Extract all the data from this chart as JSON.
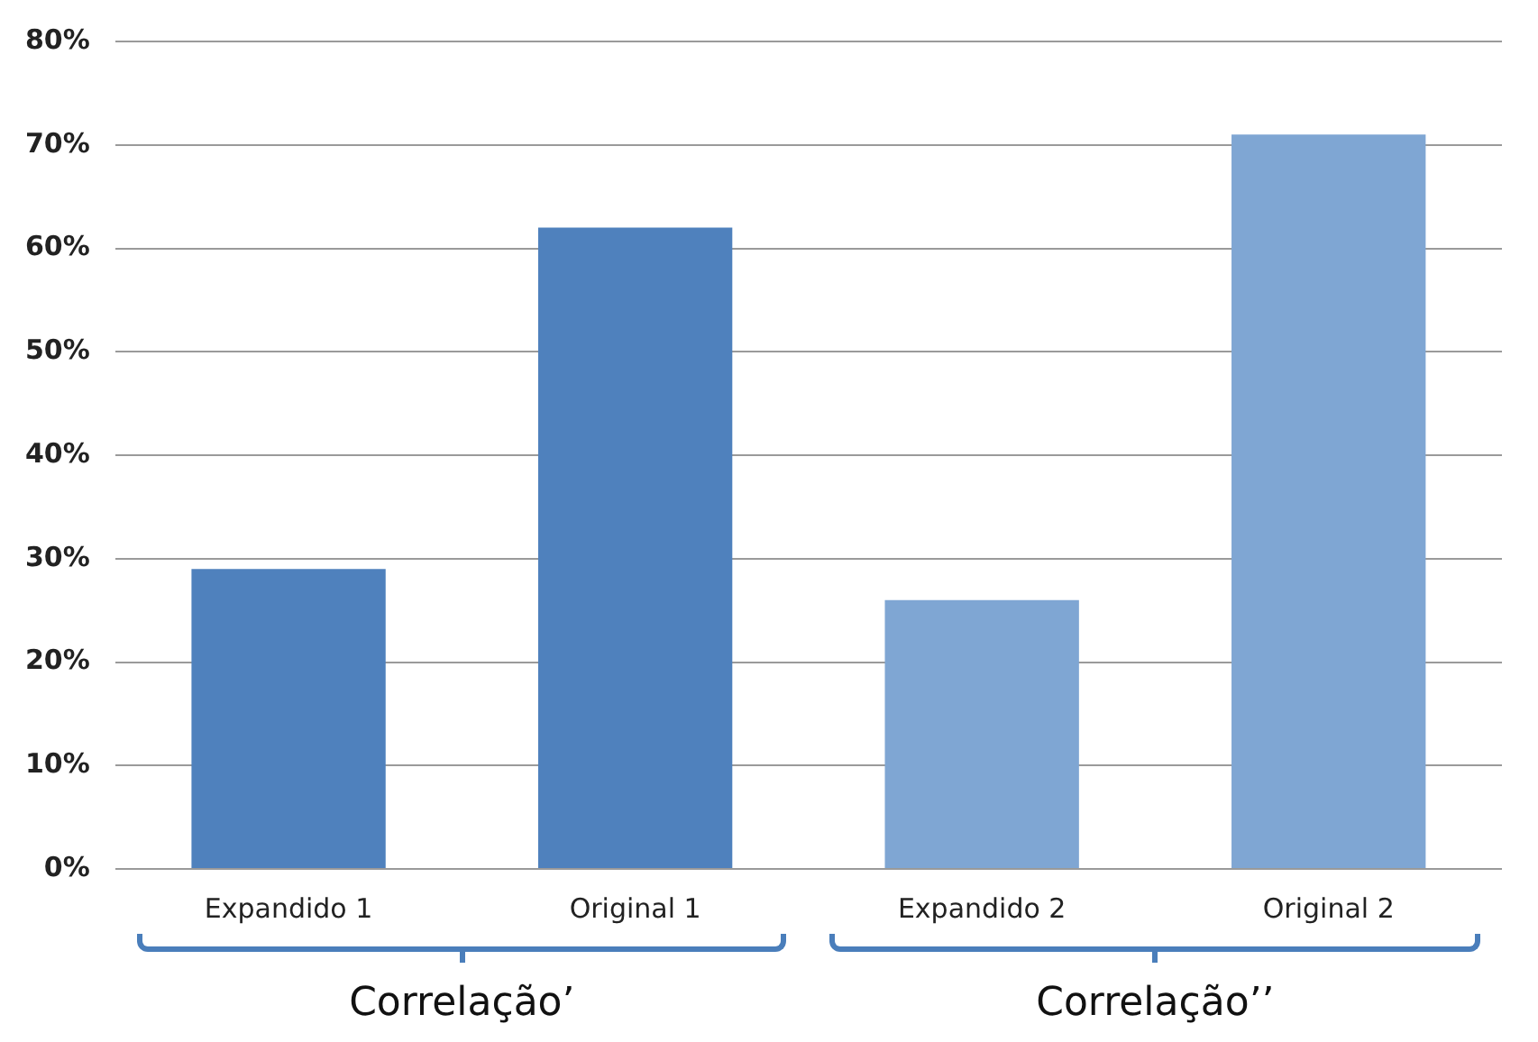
{
  "chart_data": {
    "type": "bar",
    "categories": [
      "Expandido 1",
      "Original 1",
      "Expandido 2",
      "Original 2"
    ],
    "values": [
      29,
      62,
      26,
      71
    ],
    "colors": [
      "#4f81bd",
      "#4f81bd",
      "#7fa6d3",
      "#7fa6d3"
    ],
    "ylim": [
      0,
      80
    ],
    "yticks": [
      {
        "value": 0,
        "label": "0%"
      },
      {
        "value": 10,
        "label": "10%"
      },
      {
        "value": 20,
        "label": "20%"
      },
      {
        "value": 30,
        "label": "30%"
      },
      {
        "value": 40,
        "label": "40%"
      },
      {
        "value": 50,
        "label": "50%"
      },
      {
        "value": 60,
        "label": "60%"
      },
      {
        "value": 70,
        "label": "70%"
      },
      {
        "value": 80,
        "label": "80%"
      }
    ],
    "grid": "y",
    "legend": false,
    "annotations": [
      "Correlação’",
      "Correlação’’"
    ]
  }
}
